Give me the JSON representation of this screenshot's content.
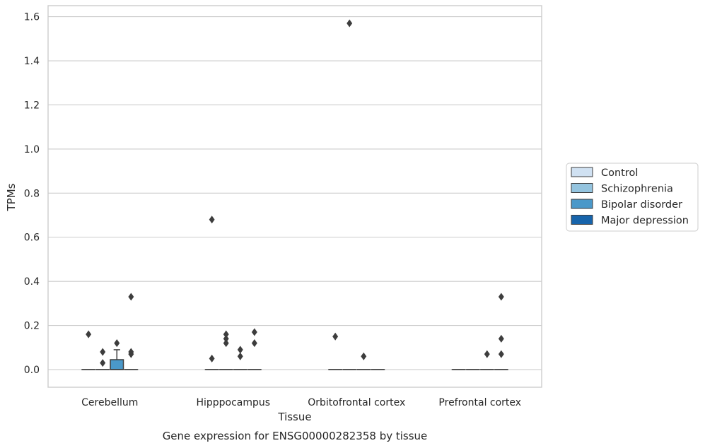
{
  "chart_data": {
    "type": "box",
    "title": "Gene expression for ENSG00000282358 by tissue",
    "xlabel": "Tissue",
    "ylabel": "TPMs",
    "ylim": [
      -0.08,
      1.65
    ],
    "yticks": [
      "0.0",
      "0.2",
      "0.4",
      "0.6",
      "0.8",
      "1.0",
      "1.2",
      "1.4",
      "1.6"
    ],
    "grid": true,
    "legend_position": "right",
    "categories": [
      "Cerebellum",
      "Hipppocampus",
      "Orbitofrontal cortex",
      "Prefrontal cortex"
    ],
    "series": [
      {
        "name": "Control",
        "color": "#d0e1f2",
        "boxes": [
          {
            "q1": 0,
            "median": 0,
            "q3": 0,
            "whisker_low": 0,
            "whisker_high": 0,
            "outliers": [
              0.16
            ]
          },
          {
            "q1": 0,
            "median": 0,
            "q3": 0,
            "whisker_low": 0,
            "whisker_high": 0,
            "outliers": [
              0.05,
              0.68
            ]
          },
          {
            "q1": 0,
            "median": 0,
            "q3": 0,
            "whisker_low": 0,
            "whisker_high": 0,
            "outliers": [
              0.15
            ]
          },
          {
            "q1": 0,
            "median": 0,
            "q3": 0,
            "whisker_low": 0,
            "whisker_high": 0,
            "outliers": []
          }
        ]
      },
      {
        "name": "Schizophrenia",
        "color": "#94c4df",
        "boxes": [
          {
            "q1": 0,
            "median": 0,
            "q3": 0,
            "whisker_low": 0,
            "whisker_high": 0,
            "outliers": [
              0.03,
              0.08
            ]
          },
          {
            "q1": 0,
            "median": 0,
            "q3": 0,
            "whisker_low": 0,
            "whisker_high": 0,
            "outliers": [
              0.12,
              0.14,
              0.16
            ]
          },
          {
            "q1": 0,
            "median": 0,
            "q3": 0,
            "whisker_low": 0,
            "whisker_high": 0,
            "outliers": [
              1.57
            ]
          },
          {
            "q1": 0,
            "median": 0,
            "q3": 0,
            "whisker_low": 0,
            "whisker_high": 0,
            "outliers": []
          }
        ]
      },
      {
        "name": "Bipolar disorder",
        "color": "#4a98c9",
        "boxes": [
          {
            "q1": 0,
            "median": 0,
            "q3": 0.045,
            "whisker_low": 0,
            "whisker_high": 0.09,
            "outliers": [
              0.12
            ]
          },
          {
            "q1": 0,
            "median": 0,
            "q3": 0,
            "whisker_low": 0,
            "whisker_high": 0,
            "outliers": [
              0.06,
              0.09
            ]
          },
          {
            "q1": 0,
            "median": 0,
            "q3": 0,
            "whisker_low": 0,
            "whisker_high": 0,
            "outliers": [
              0.06
            ]
          },
          {
            "q1": 0,
            "median": 0,
            "q3": 0,
            "whisker_low": 0,
            "whisker_high": 0,
            "outliers": [
              0.07
            ]
          }
        ]
      },
      {
        "name": "Major depression",
        "color": "#1764ab",
        "boxes": [
          {
            "q1": 0,
            "median": 0,
            "q3": 0,
            "whisker_low": 0,
            "whisker_high": 0,
            "outliers": [
              0.07,
              0.08,
              0.33
            ]
          },
          {
            "q1": 0,
            "median": 0,
            "q3": 0,
            "whisker_low": 0,
            "whisker_high": 0,
            "outliers": [
              0.12,
              0.17
            ]
          },
          {
            "q1": 0,
            "median": 0,
            "q3": 0,
            "whisker_low": 0,
            "whisker_high": 0,
            "outliers": []
          },
          {
            "q1": 0,
            "median": 0,
            "q3": 0,
            "whisker_low": 0,
            "whisker_high": 0,
            "outliers": [
              0.07,
              0.14,
              0.33
            ]
          }
        ]
      }
    ]
  }
}
